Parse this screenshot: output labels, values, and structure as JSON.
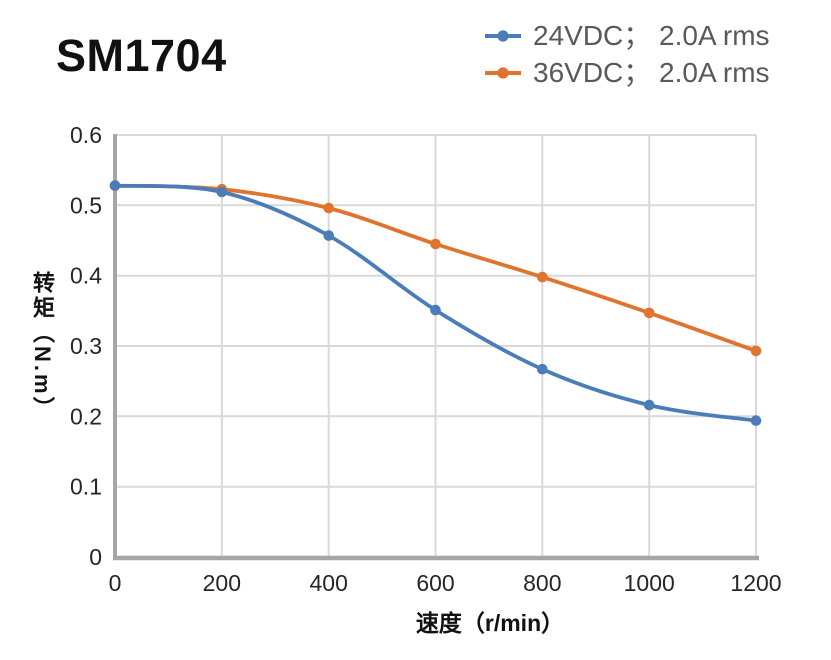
{
  "header": {
    "title": "SM1704"
  },
  "chart_data": {
    "type": "line",
    "title": "SM1704",
    "x": [
      0,
      200,
      400,
      600,
      800,
      1000,
      1200
    ],
    "series": [
      {
        "id": "24vdc",
        "name": "24VDC； 2.0A rms",
        "color": "#4A7DB8",
        "values": [
          0.528,
          0.519,
          0.457,
          0.351,
          0.267,
          0.216,
          0.194
        ]
      },
      {
        "id": "36vdc",
        "name": "36VDC； 2.0A rms",
        "color": "#E0742E",
        "values": [
          0.528,
          0.523,
          0.496,
          0.445,
          0.398,
          0.347,
          0.293
        ]
      }
    ],
    "xlabel": "速度（r/min）",
    "ylabel": "转矩（N.m）",
    "xlim": [
      0,
      1200
    ],
    "ylim": [
      0,
      0.6
    ],
    "xticks": {
      "values": [
        0,
        200,
        400,
        600,
        800,
        1000,
        1200
      ],
      "labels": [
        "0",
        "200",
        "400",
        "600",
        "800",
        "1000",
        "1200"
      ]
    },
    "yticks": {
      "values": [
        0,
        0.1,
        0.2,
        0.3,
        0.4,
        0.5,
        0.6
      ],
      "labels": [
        "0",
        "0.1",
        "0.2",
        "0.3",
        "0.4",
        "0.5",
        "0.6"
      ]
    },
    "grid": true,
    "smooth": true,
    "marker": "circle",
    "legend_position": "top-right"
  },
  "style_colors": {
    "background": "#FFFFFF",
    "grid": "#D9D9D9",
    "axis": "#A6A6A6",
    "tick_label": "#262626",
    "legend_text": "#595959",
    "title_text": "#111111"
  }
}
